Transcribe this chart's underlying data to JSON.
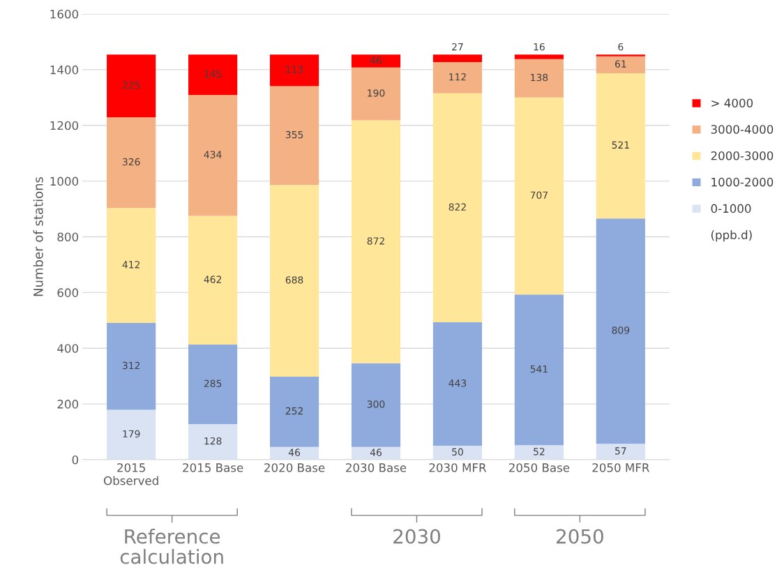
{
  "chart_data": {
    "type": "bar",
    "stacked": true,
    "ylabel": "Number of stations",
    "categories": [
      "2015\nObserved",
      "2015 Base",
      "2020 Base",
      "2030 Base",
      "2030 MFR",
      "2050 Base",
      "2050 MFR"
    ],
    "series": [
      {
        "name": "0-1000",
        "color": "#dae3f3",
        "values": [
          179,
          128,
          46,
          46,
          50,
          52,
          57
        ]
      },
      {
        "name": "1000-2000",
        "color": "#8faadc",
        "values": [
          312,
          285,
          252,
          300,
          443,
          541,
          809
        ]
      },
      {
        "name": "2000-3000",
        "color": "#ffe699",
        "values": [
          412,
          462,
          688,
          872,
          822,
          707,
          521
        ]
      },
      {
        "name": "3000-4000",
        "color": "#f4b183",
        "values": [
          326,
          434,
          355,
          190,
          112,
          138,
          61
        ]
      },
      {
        "name": "> 4000",
        "color": "#ff0000",
        "values": [
          225,
          145,
          113,
          46,
          27,
          16,
          6
        ]
      }
    ],
    "ylim": [
      0,
      1600
    ],
    "yticks": [
      0,
      200,
      400,
      600,
      800,
      1000,
      1200,
      1400,
      1600
    ],
    "grid": "y",
    "legend": "right",
    "legend_title": "(ppb.d)",
    "data_labels": true,
    "annotations": [
      "Reference\ncalculation",
      "2030",
      "2050"
    ]
  }
}
